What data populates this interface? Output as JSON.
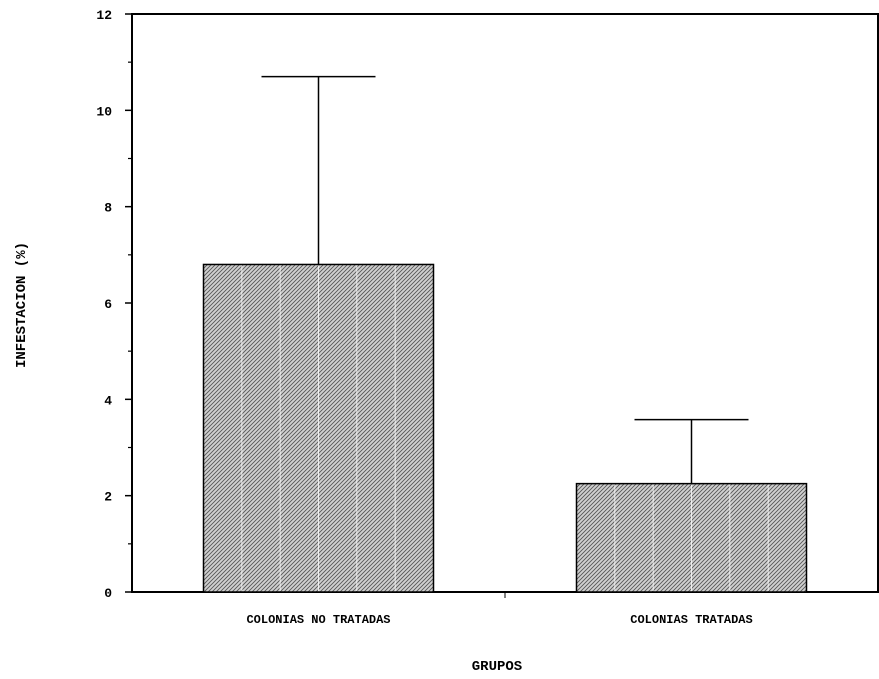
{
  "chart_data": {
    "type": "bar",
    "categories": [
      "COLONIAS NO TRATADAS",
      "COLONIAS TRATADAS"
    ],
    "values": [
      6.8,
      2.25
    ],
    "error_upper": [
      10.7,
      3.58
    ],
    "title": "",
    "xlabel": "GRUPOS",
    "ylabel": "INFESTACION (%)",
    "ylim": [
      0,
      12
    ],
    "yticks": [
      0,
      2,
      4,
      6,
      8,
      10,
      12
    ],
    "grid": false,
    "legend": "none",
    "bar_fill": "hatched-gray"
  }
}
